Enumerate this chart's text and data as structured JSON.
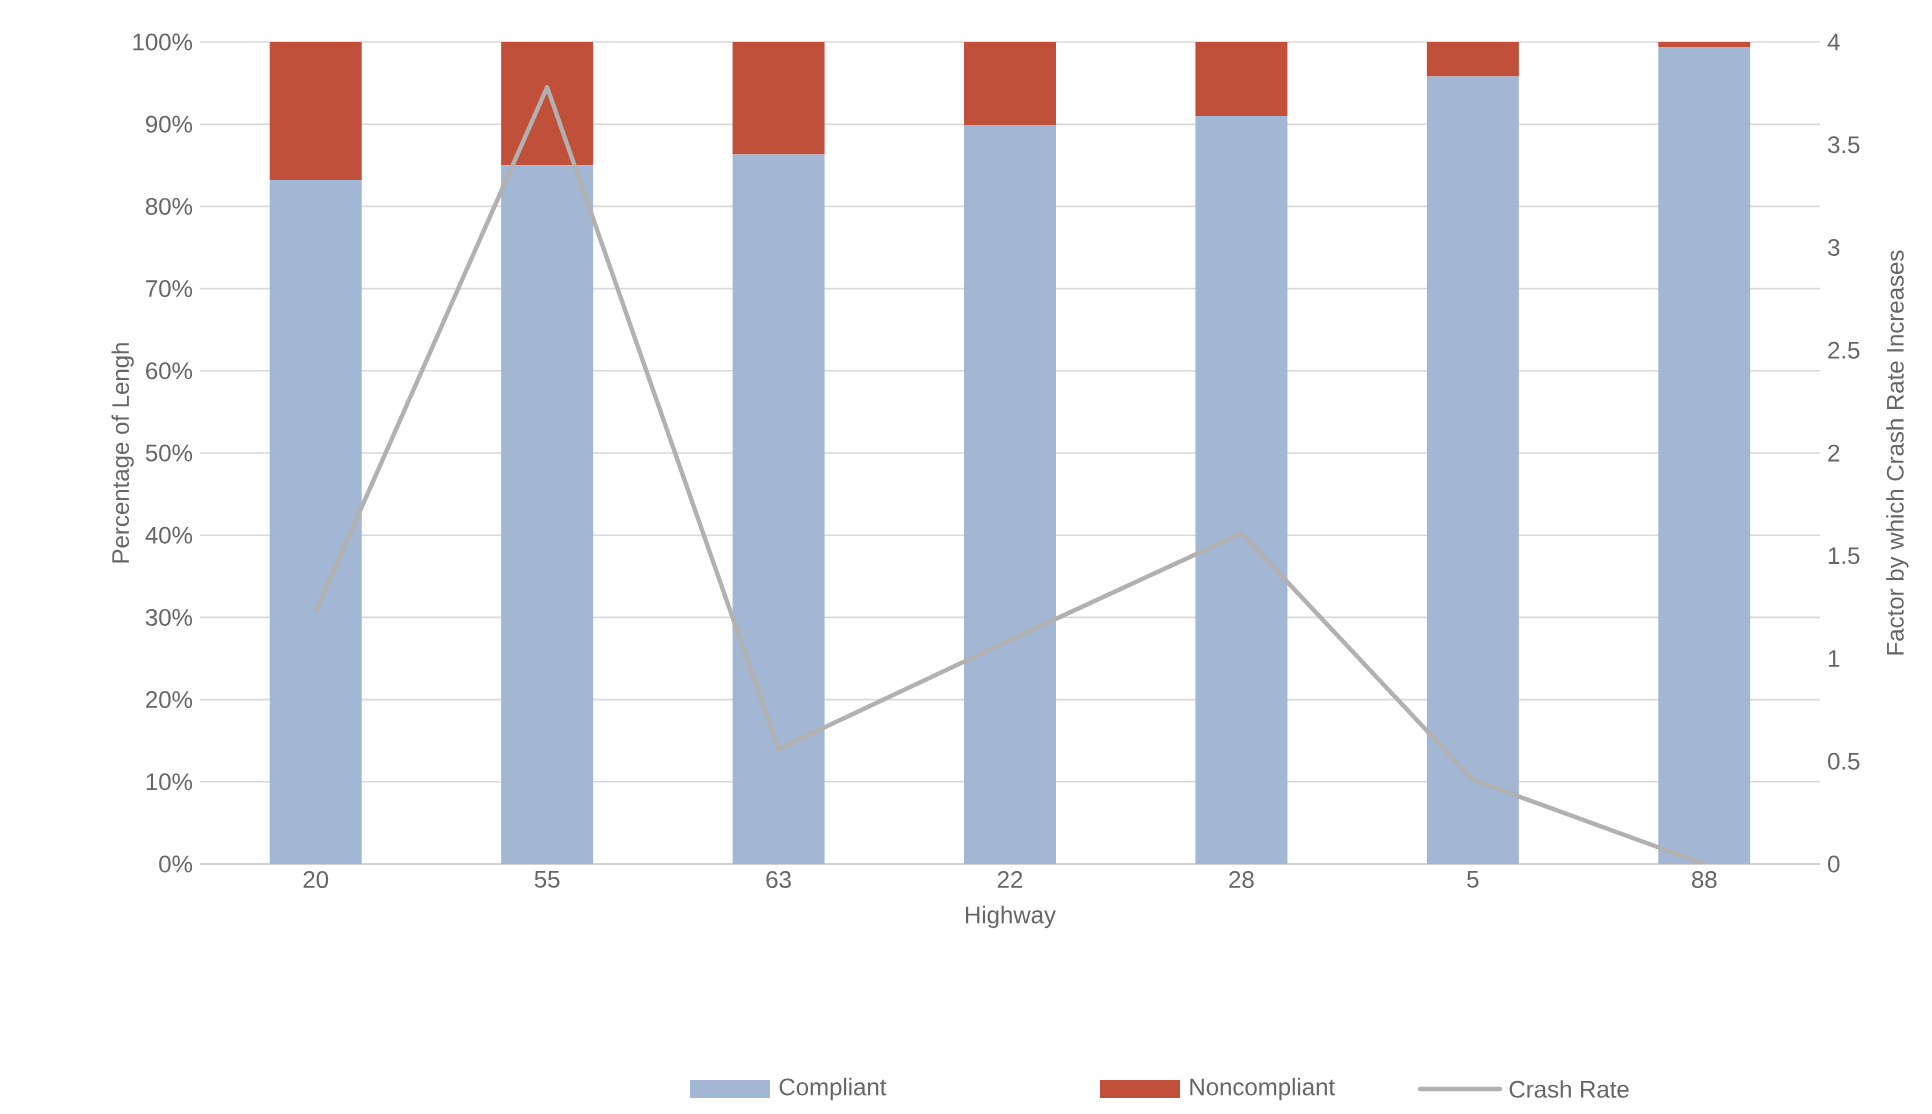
{
  "chart_data": {
    "type": "bar",
    "stacked": true,
    "xlabel": "Highway",
    "ylabel": "Percentage of Lengh",
    "y2label": "Factor by which Crash Rate Increases",
    "categories": [
      "20",
      "55",
      "63",
      "22",
      "28",
      "5",
      "88"
    ],
    "series": [
      {
        "name": "Compliant",
        "color": "#a3b6d3",
        "values": [
          83.2,
          85.0,
          86.3,
          89.9,
          91.0,
          95.8,
          99.4
        ]
      },
      {
        "name": "Noncompliant",
        "color": "#c0503a",
        "values": [
          16.8,
          15.0,
          13.7,
          10.1,
          9.0,
          4.2,
          0.6
        ]
      },
      {
        "name": "Crash Rate",
        "type": "line",
        "axis": "y2",
        "color": "#b1b1b1",
        "values": [
          1.23,
          3.78,
          0.56,
          1.09,
          1.61,
          0.41,
          0
        ]
      }
    ],
    "ylim": [
      0,
      100
    ],
    "yticks": [
      {
        "value": 0,
        "label": "0%"
      },
      {
        "value": 10,
        "label": "10%"
      },
      {
        "value": 20,
        "label": "20%"
      },
      {
        "value": 30,
        "label": "30%"
      },
      {
        "value": 40,
        "label": "40%"
      },
      {
        "value": 50,
        "label": "50%"
      },
      {
        "value": 60,
        "label": "60%"
      },
      {
        "value": 70,
        "label": "70%"
      },
      {
        "value": 80,
        "label": "80%"
      },
      {
        "value": 90,
        "label": "90%"
      },
      {
        "value": 100,
        "label": "100%"
      }
    ],
    "y2lim": [
      0,
      4
    ],
    "y2ticks": [
      0,
      0.5,
      1,
      1.5,
      2,
      2.5,
      3,
      3.5,
      4
    ],
    "grid": "y",
    "legend": "bottom"
  }
}
